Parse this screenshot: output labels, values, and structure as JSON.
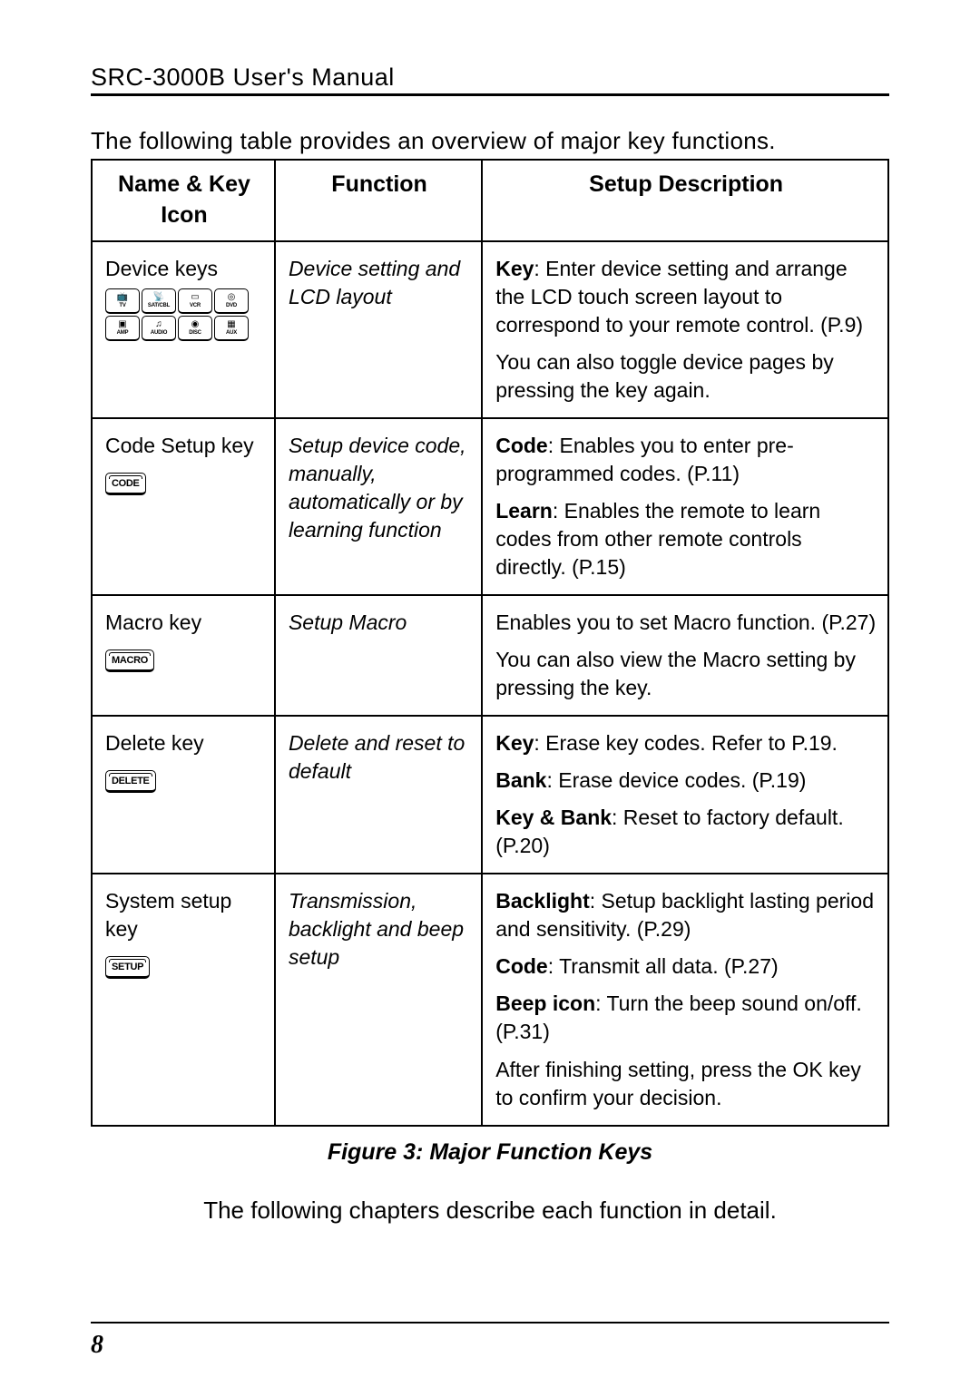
{
  "header": {
    "title": "SRC-3000B User's Manual"
  },
  "intro_text": "The following table provides an overview of major key functions.",
  "table": {
    "headers": {
      "col1": "Name & Key Icon",
      "col2": "Function",
      "col3": "Setup Description"
    },
    "rows": [
      {
        "name": "Device keys",
        "function": "Device setting and LCD layout",
        "desc": [
          {
            "bold": "Key",
            "rest": ": Enter device setting and arrange the LCD touch screen layout to correspond to your remote control. (P.9)"
          },
          {
            "rest": "You can also toggle device pages by pressing the key again."
          }
        ],
        "device_icons": [
          {
            "glyph": "📺",
            "lbl": "TV"
          },
          {
            "glyph": "📡",
            "lbl": "SAT/CBL"
          },
          {
            "glyph": "▭",
            "lbl": "VCR"
          },
          {
            "glyph": "◎",
            "lbl": "DVD"
          },
          {
            "glyph": "▣",
            "lbl": "AMP"
          },
          {
            "glyph": "♫",
            "lbl": "AUDIO"
          },
          {
            "glyph": "◉",
            "lbl": "DISC"
          },
          {
            "glyph": "▦",
            "lbl": "AUX"
          }
        ]
      },
      {
        "name": "Code Setup key",
        "key_label": "CODE",
        "function": "Setup device code, manually, automatically or by learning function",
        "desc": [
          {
            "bold": "Code",
            "rest": ": Enables you to enter pre-programmed codes. (P.11)"
          },
          {
            "bold": "Learn",
            "rest": ": Enables the remote to learn codes from other remote controls directly. (P.15)"
          }
        ]
      },
      {
        "name": "Macro key",
        "key_label": "MACRO",
        "function": "Setup Macro",
        "desc": [
          {
            "rest": "Enables you to set Macro function. (P.27)"
          },
          {
            "rest": "You can also view the Macro setting by pressing the key."
          }
        ]
      },
      {
        "name": "Delete key",
        "key_label": "DELETE",
        "function": "Delete and reset to default",
        "desc": [
          {
            "bold": "Key",
            "rest": ": Erase key codes. Refer to P.19."
          },
          {
            "bold": "Bank",
            "rest": ": Erase device codes. (P.19)"
          },
          {
            "bold": "Key & Bank",
            "rest": ": Reset to factory default. (P.20)"
          }
        ]
      },
      {
        "name": "System setup key",
        "key_label": "SETUP",
        "function": "Transmission, backlight and beep setup",
        "desc": [
          {
            "bold": "Backlight",
            "rest": ": Setup backlight lasting period and sensitivity. (P.29)"
          },
          {
            "bold": "Code",
            "rest": ": Transmit all data. (P.27)"
          },
          {
            "bold": "Beep icon",
            "rest": ": Turn the beep sound on/off. (P.31)"
          },
          {
            "rest": "After finishing setting, press the OK key to confirm your decision."
          }
        ]
      }
    ]
  },
  "caption": "Figure 3: Major Function Keys",
  "conclusion": "The following chapters describe each function in detail.",
  "page_number": "8"
}
